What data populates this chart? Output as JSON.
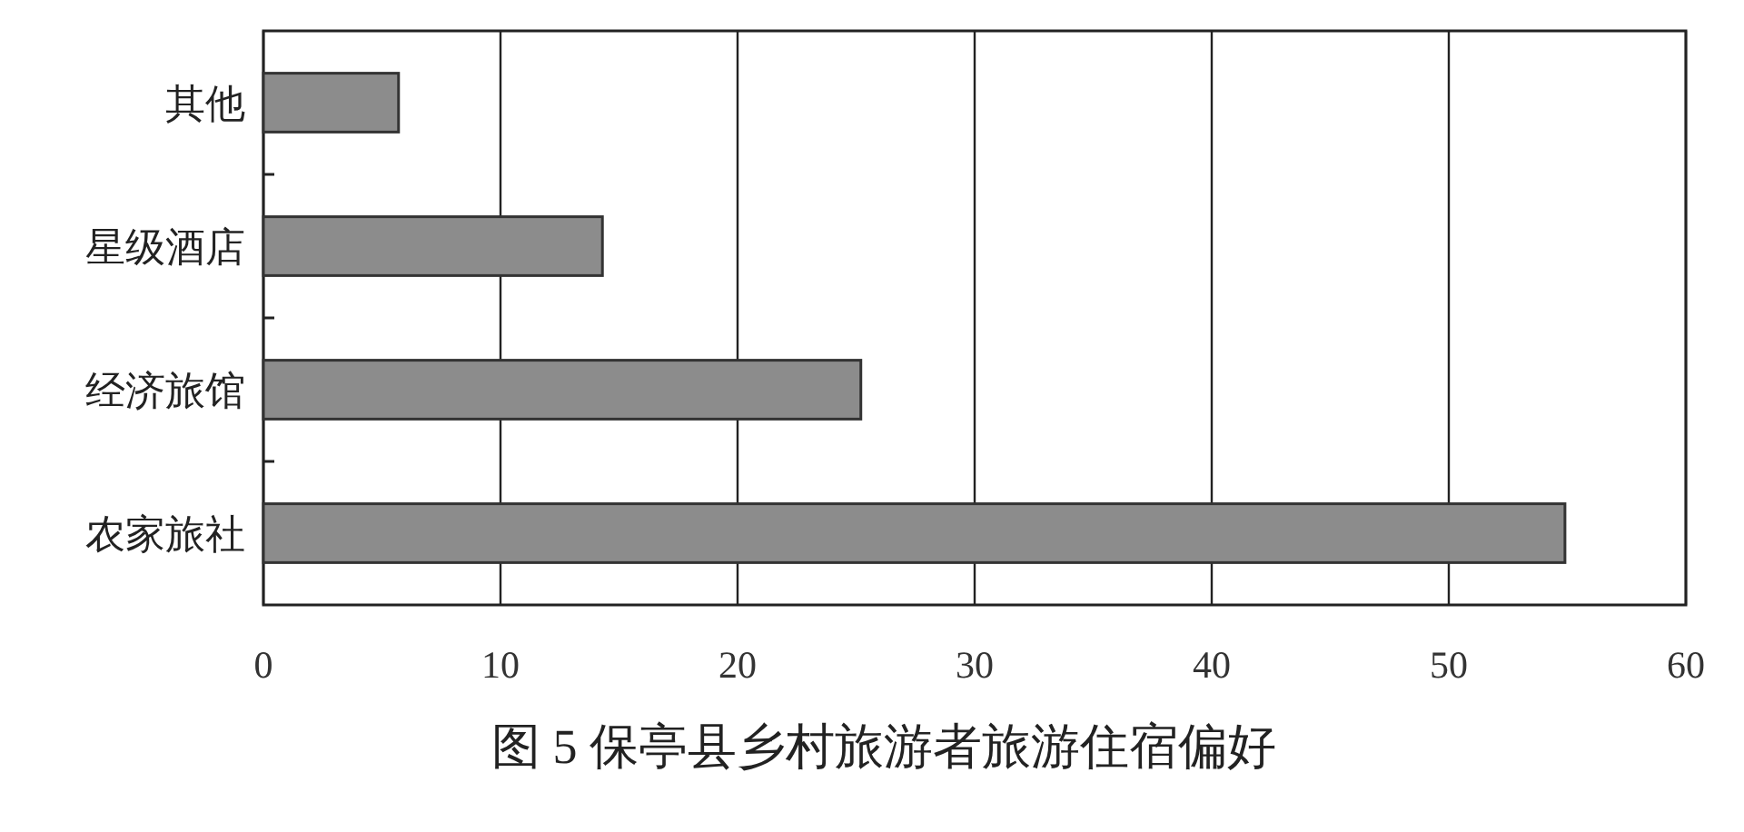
{
  "chart_data": {
    "type": "bar",
    "orientation": "horizontal",
    "title": "图 5 保亭县乡村旅游者旅游住宿偏好",
    "categories": [
      "其他",
      "星级酒店",
      "经济旅馆",
      "农家旅社"
    ],
    "values": [
      5.7,
      14.3,
      25.2,
      54.9
    ],
    "color": "#8c8c8c",
    "xlim": [
      0,
      60
    ],
    "xticks": [
      0,
      10,
      20,
      30,
      40,
      50,
      60
    ],
    "grid": "x"
  }
}
